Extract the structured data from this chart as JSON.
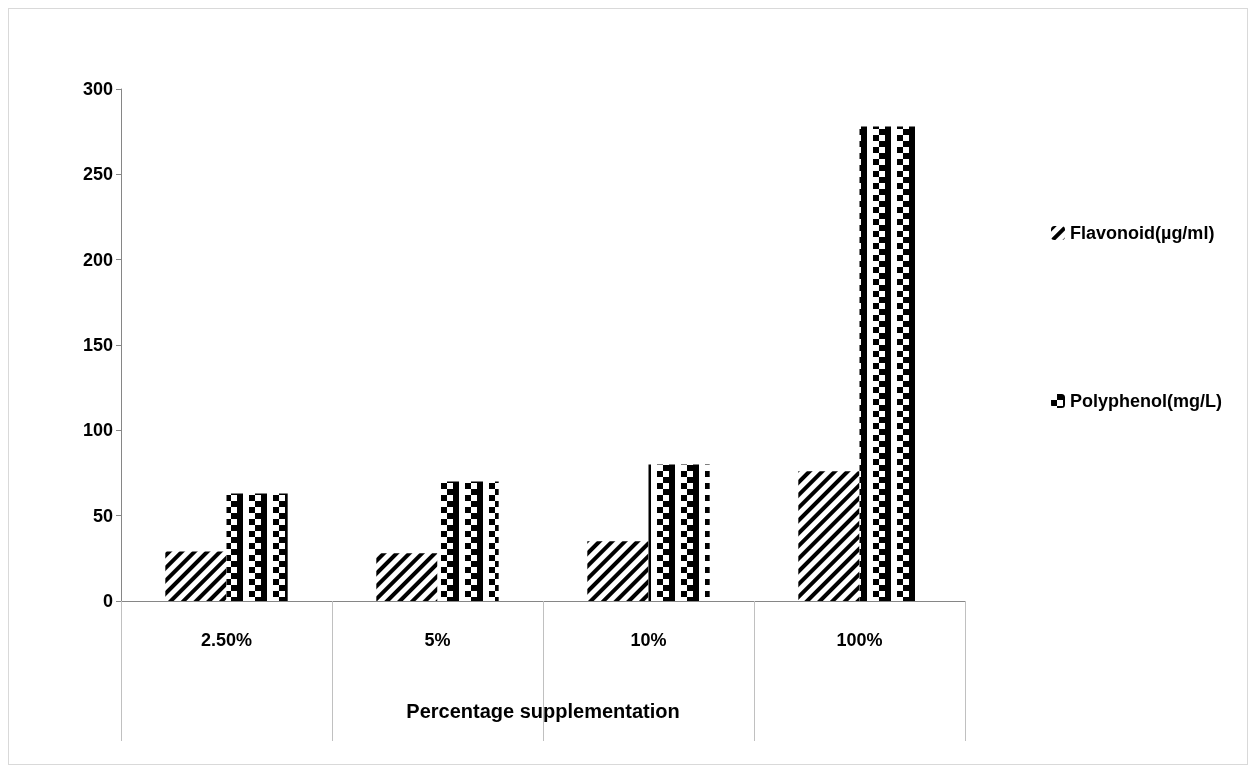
{
  "chart_data": {
    "type": "bar",
    "xlabel": "Percentage supplementation",
    "categories": [
      "2.50%",
      "5%",
      "10%",
      "100%"
    ],
    "series": [
      {
        "name": "Flavonoid(µg/ml)",
        "color": "#000000",
        "values": [
          29,
          28,
          35,
          76
        ]
      },
      {
        "name": "Polyphenol(mg/L)",
        "color": "#000000",
        "values": [
          63,
          70,
          80,
          278
        ]
      }
    ],
    "ylim": [
      0,
      300
    ],
    "yticks": [
      0,
      50,
      100,
      150,
      200,
      250,
      300
    ],
    "grid": false,
    "legend": "right"
  }
}
